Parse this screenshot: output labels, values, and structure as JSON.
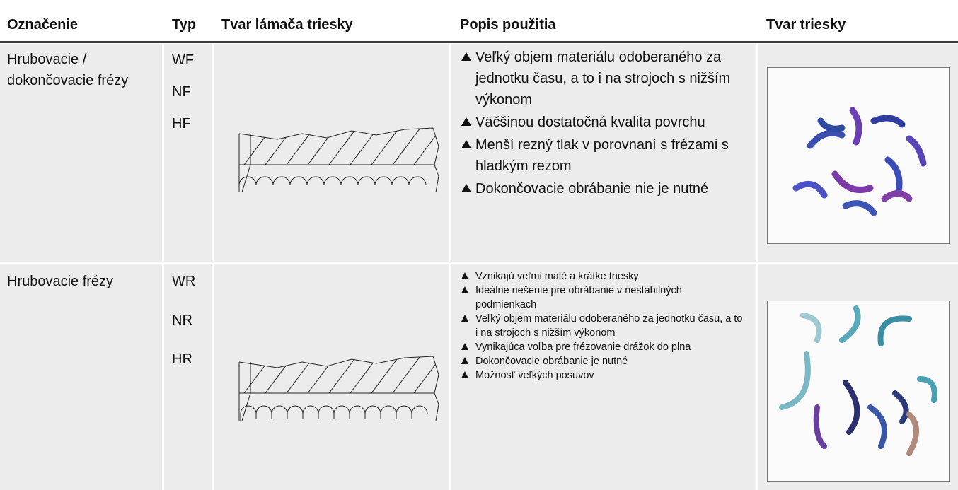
{
  "header": {
    "columns": [
      "Označenie",
      "Typ",
      "Tvar lámača triesky",
      "Popis použitia",
      "Tvar triesky"
    ]
  },
  "rows": [
    {
      "designation": "Hrubovacie / dokončovacie frézy",
      "types": [
        "WF",
        "NF",
        "HF"
      ],
      "uses": [
        "Veľký objem materiálu odoberaného za jednotku času, a to i na strojoch s nižším výkonom",
        "Väčšinou dostatočná kvalita povrchu",
        "Menší rezný tlak v porovnaní s frézami s hladkým rezom",
        "Dokončovacie obrábanie nie je nutné"
      ]
    },
    {
      "designation": "Hrubovacie frézy",
      "types": [
        "WR",
        "NR",
        "HR"
      ],
      "uses": [
        "Vznikajú veľmi malé a krátke triesky",
        "Ideálne riešenie pre obrábanie v nestabilných podmienkach",
        "Veľký objem materiálu odoberaného za jednotku času, a to i na strojoch s nižším výkonom",
        "Vynikajúca voľba pre frézovanie drážok do plna",
        "Dokončovacie obrábanie je nutné",
        "Možnosť veľkých posuvov"
      ]
    }
  ]
}
